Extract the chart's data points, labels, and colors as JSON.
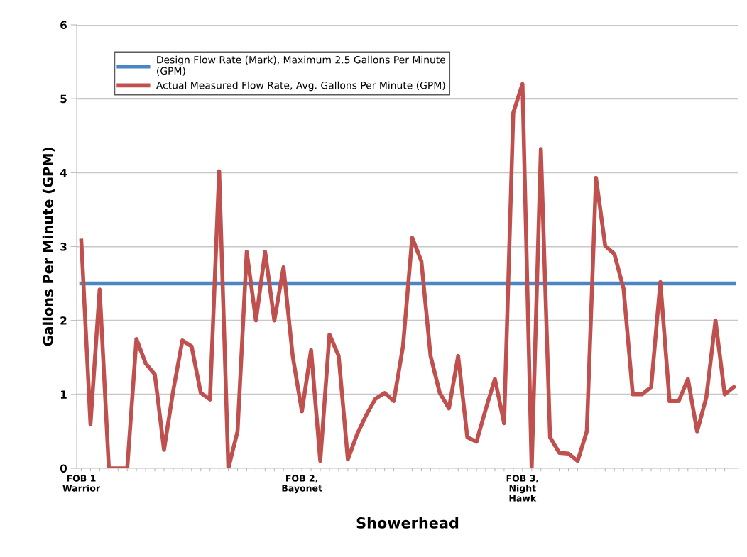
{
  "chart_data": {
    "type": "line",
    "xlabel": "Showerhead",
    "ylabel": "Gallons Per Minute (GPM)",
    "categories": [
      "FOB 1\nWarrior",
      null,
      null,
      null,
      null,
      null,
      null,
      null,
      null,
      null,
      null,
      null,
      null,
      null,
      null,
      null,
      null,
      null,
      null,
      null,
      null,
      null,
      null,
      null,
      "FOB 2,\nBayonet",
      null,
      null,
      null,
      null,
      null,
      null,
      null,
      null,
      null,
      null,
      null,
      null,
      null,
      null,
      null,
      null,
      null,
      null,
      null,
      null,
      null,
      null,
      null,
      "FOB 3,\nNight\nHawk",
      null,
      null,
      null,
      null,
      null,
      null,
      null,
      null,
      null,
      null,
      null,
      null,
      null,
      null,
      null,
      null,
      null,
      null,
      null,
      null,
      null,
      null,
      null
    ],
    "series": [
      {
        "name": "Design Flow Rate (Mark), Maximum 2.5 Gallons Per Minute\n(GPM)",
        "color": "#4a86c5",
        "values": [
          2.5,
          2.5,
          2.5,
          2.5,
          2.5,
          2.5,
          2.5,
          2.5,
          2.5,
          2.5,
          2.5,
          2.5,
          2.5,
          2.5,
          2.5,
          2.5,
          2.5,
          2.5,
          2.5,
          2.5,
          2.5,
          2.5,
          2.5,
          2.5,
          2.5,
          2.5,
          2.5,
          2.5,
          2.5,
          2.5,
          2.5,
          2.5,
          2.5,
          2.5,
          2.5,
          2.5,
          2.5,
          2.5,
          2.5,
          2.5,
          2.5,
          2.5,
          2.5,
          2.5,
          2.5,
          2.5,
          2.5,
          2.5,
          2.5,
          2.5,
          2.5,
          2.5,
          2.5,
          2.5,
          2.5,
          2.5,
          2.5,
          2.5,
          2.5,
          2.5,
          2.5,
          2.5,
          2.5,
          2.5,
          2.5,
          2.5,
          2.5,
          2.5,
          2.5,
          2.5,
          2.5,
          2.5
        ]
      },
      {
        "name": "Actual Measured Flow Rate, Avg. Gallons Per Minute (GPM)",
        "color": "#c0504d",
        "values": [
          3.08,
          0.6,
          2.42,
          0,
          0,
          0,
          1.75,
          1.42,
          1.27,
          0.25,
          1.05,
          1.73,
          1.65,
          1.02,
          0.93,
          4.02,
          0,
          0.5,
          2.93,
          2.0,
          2.93,
          2.0,
          2.72,
          1.52,
          0.77,
          1.6,
          0.1,
          1.81,
          1.52,
          0.12,
          0.46,
          0.72,
          0.94,
          1.02,
          0.91,
          1.65,
          3.12,
          2.8,
          1.52,
          1.02,
          0.81,
          1.52,
          0.42,
          0.36,
          0.8,
          1.21,
          0.61,
          4.81,
          5.2,
          0,
          4.32,
          0.42,
          0.21,
          0.2,
          0.1,
          0.5,
          3.93,
          3.01,
          2.9,
          2.43,
          1.0,
          1.0,
          1.1,
          2.52,
          0.91,
          0.91,
          1.21,
          0.5,
          0.96,
          2.0,
          1.0,
          1.1
        ]
      }
    ],
    "ylim": [
      0,
      6
    ],
    "yticks": [
      0,
      1,
      2,
      3,
      4,
      5,
      6
    ],
    "grid": "y",
    "legend": "top left",
    "marker": "none",
    "line_style": "solid"
  }
}
